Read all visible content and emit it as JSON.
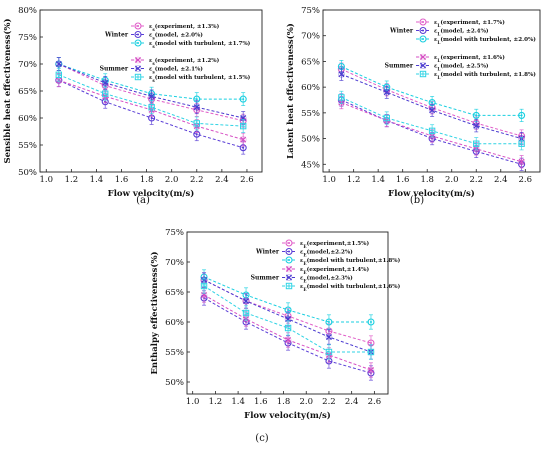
{
  "charts": [
    {
      "panel_caption": "(a)",
      "type": "line",
      "title": "",
      "xlabel": "Flow velocity(m/s)",
      "ylabel": "Sensible heat effectiveness(%)",
      "x_ticks": [
        "1.0",
        "1.2",
        "1.4",
        "1.6",
        "1.8",
        "2.0",
        "2.2",
        "2.4",
        "2.6"
      ],
      "y_ticks": [
        "50%",
        "55%",
        "60%",
        "65%",
        "70%",
        "75%",
        "80%"
      ],
      "xlim": [
        0.95,
        2.72
      ],
      "ylim": [
        50,
        80
      ],
      "legend": {
        "groups": [
          {
            "label": "Winter",
            "entries": [
              "εs(experiment, ±1.3%)",
              "εs(model, ±2.0%)",
              "εs(model with turbulent, ±1.7%)"
            ]
          },
          {
            "label": "Summer",
            "entries": [
              "εs(experiment, ±1.2%)",
              "εs(model, ±2.1%)",
              "εs(model with turbulent, ±1.5%)"
            ]
          }
        ]
      },
      "x": [
        1.1,
        1.47,
        1.84,
        2.2,
        2.57
      ],
      "series": [
        {
          "name": "εs(experiment, ±1.3%)",
          "season": "Winter",
          "color": "#e05cc8",
          "marker": "circle",
          "values": [
            70.0,
            66.0,
            63.5,
            61.5,
            59.5
          ]
        },
        {
          "name": "εs(model, ±2.0%)",
          "season": "Winter",
          "color": "#5a3ed6",
          "marker": "circle",
          "values": [
            67.0,
            63.0,
            60.0,
            57.0,
            54.5
          ]
        },
        {
          "name": "εs(model with turbulent, ±1.7%)",
          "season": "Winter",
          "color": "#19cfe0",
          "marker": "circle",
          "values": [
            70.0,
            67.0,
            64.5,
            63.5,
            63.5
          ]
        },
        {
          "name": "εs(experiment, ±1.2%)",
          "season": "Summer",
          "color": "#d64fc4",
          "marker": "cross",
          "values": [
            67.0,
            64.0,
            61.5,
            58.5,
            56.0
          ]
        },
        {
          "name": "εs(model, ±2.1%)",
          "season": "Summer",
          "color": "#4b3bd0",
          "marker": "cross",
          "values": [
            70.0,
            66.5,
            64.0,
            62.0,
            60.0
          ]
        },
        {
          "name": "εs(model with turbulent, ±1.5%)",
          "season": "Summer",
          "color": "#2fd3e4",
          "marker": "square",
          "values": [
            68.0,
            64.5,
            62.0,
            59.0,
            58.5
          ]
        }
      ]
    },
    {
      "panel_caption": "(b)",
      "type": "line",
      "title": "",
      "xlabel": "Flow velocity(m/s)",
      "ylabel": "Latent heat effectiveness(%)",
      "x_ticks": [
        "1.0",
        "1.2",
        "1.4",
        "1.6",
        "1.8",
        "2.0",
        "2.2",
        "2.4",
        "2.6"
      ],
      "y_ticks": [
        "45%",
        "50%",
        "55%",
        "60%",
        "65%",
        "70%",
        "75%"
      ],
      "xlim": [
        0.95,
        2.72
      ],
      "ylim": [
        43.5,
        75
      ],
      "legend": {
        "groups": [
          {
            "label": "Winter",
            "entries": [
              "εL(experiment, ±1.7%)",
              "εL(model, ±2.4%)",
              "εL(model with turbulent, ±2.0%)"
            ]
          },
          {
            "label": "Summer",
            "entries": [
              "εL(experiment, ±1.6%)",
              "εL(model, ±2.5%)",
              "εL(model with turbulent, ±1.8%)"
            ]
          }
        ]
      },
      "x": [
        1.1,
        1.47,
        1.84,
        2.2,
        2.57
      ],
      "series": [
        {
          "name": "εL(experiment, ±1.7%)",
          "season": "Winter",
          "color": "#e05cc8",
          "marker": "circle",
          "values": [
            63.5,
            59.5,
            56.0,
            53.0,
            50.5
          ]
        },
        {
          "name": "εL(model, ±2.4%)",
          "season": "Winter",
          "color": "#5a3ed6",
          "marker": "circle",
          "values": [
            57.5,
            53.5,
            50.0,
            47.5,
            45.0
          ]
        },
        {
          "name": "εL(model with turbulent, ±2.0%)",
          "season": "Winter",
          "color": "#19cfe0",
          "marker": "circle",
          "values": [
            64.0,
            60.0,
            57.0,
            54.5,
            54.5
          ]
        },
        {
          "name": "εL(experiment, ±1.6%)",
          "season": "Summer",
          "color": "#d64fc4",
          "marker": "cross",
          "values": [
            57.0,
            53.5,
            50.5,
            48.0,
            45.5
          ]
        },
        {
          "name": "εL(model, ±2.5%)",
          "season": "Summer",
          "color": "#4b3bd0",
          "marker": "cross",
          "values": [
            62.5,
            59.0,
            55.5,
            52.5,
            50.0
          ]
        },
        {
          "name": "εL(model with turbulent, ±1.8%)",
          "season": "Summer",
          "color": "#2fd3e4",
          "marker": "square",
          "values": [
            58.0,
            54.0,
            51.5,
            49.0,
            49.0
          ]
        }
      ]
    },
    {
      "panel_caption": "(c)",
      "type": "line",
      "title": "",
      "xlabel": "Flow velocity(m/s)",
      "ylabel": "Enthalpy effectiveness(%)",
      "x_ticks": [
        "1.0",
        "1.2",
        "1.4",
        "1.6",
        "1.8",
        "2.0",
        "2.2",
        "2.4",
        "2.6"
      ],
      "y_ticks": [
        "50%",
        "55%",
        "60%",
        "65%",
        "70%",
        "75%"
      ],
      "xlim": [
        0.95,
        2.72
      ],
      "ylim": [
        48,
        75
      ],
      "legend": {
        "groups": [
          {
            "label": "Winter",
            "entries": [
              "εE(experiment,±1.5%)",
              "εE(model,±2.2%)",
              "εE(model with turbulent,±1.8%)"
            ]
          },
          {
            "label": "Summer",
            "entries": [
              "εE(experiment,±1.4%)",
              "εE(model,±2.3%)",
              "εE(model with turbulent,±1.6%)"
            ]
          }
        ]
      },
      "x": [
        1.1,
        1.47,
        1.84,
        2.2,
        2.57
      ],
      "series": [
        {
          "name": "εE(experiment,±1.5%)",
          "season": "Winter",
          "color": "#e05cc8",
          "marker": "circle",
          "values": [
            67.0,
            63.5,
            61.0,
            58.5,
            56.5
          ]
        },
        {
          "name": "εE(model,±2.2%)",
          "season": "Winter",
          "color": "#5a3ed6",
          "marker": "circle",
          "values": [
            64.0,
            60.0,
            56.5,
            53.5,
            51.5
          ]
        },
        {
          "name": "εE(model with turbulent,±1.8%)",
          "season": "Winter",
          "color": "#19cfe0",
          "marker": "circle",
          "values": [
            67.5,
            64.5,
            62.0,
            60.0,
            60.0
          ]
        },
        {
          "name": "εE(experiment,±1.4%)",
          "season": "Summer",
          "color": "#d64fc4",
          "marker": "cross",
          "values": [
            64.5,
            60.5,
            57.0,
            54.5,
            52.0
          ]
        },
        {
          "name": "εE(model,±2.3%)",
          "season": "Summer",
          "color": "#4b3bd0",
          "marker": "cross",
          "values": [
            67.0,
            63.5,
            60.5,
            57.5,
            55.0
          ]
        },
        {
          "name": "εE(model with turbulent,±1.6%)",
          "season": "Summer",
          "color": "#2fd3e4",
          "marker": "square",
          "values": [
            66.0,
            61.5,
            59.0,
            55.0,
            55.0
          ]
        }
      ]
    }
  ]
}
